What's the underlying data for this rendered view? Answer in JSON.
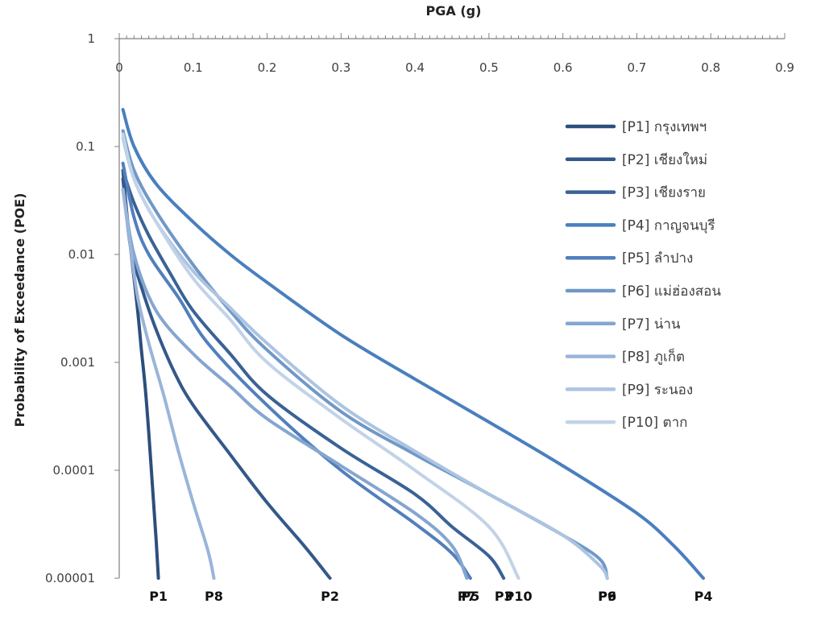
{
  "chart_data": {
    "type": "line",
    "title": "",
    "xlabel": "PGA (g)",
    "ylabel": "Probability of Exceedance (POE)",
    "x_axis_position": "top",
    "xlim": [
      0,
      0.9
    ],
    "ylim": [
      1e-05,
      1
    ],
    "yscale": "log",
    "x_ticks": [
      "0",
      "0.1",
      "0.2",
      "0.3",
      "0.4",
      "0.5",
      "0.6",
      "0.7",
      "0.8",
      "0.9"
    ],
    "y_ticks": [
      "1",
      "0.1",
      "0.01",
      "0.001",
      "0.0001",
      "0.00001"
    ],
    "legend_position": "right",
    "grid": false,
    "series": [
      {
        "name": "[P1] กรุงเทพฯ",
        "end_label": "P1",
        "color": "#2c4f7c",
        "points": [
          [
            0.005,
            0.06
          ],
          [
            0.01,
            0.025
          ],
          [
            0.015,
            0.012
          ],
          [
            0.02,
            0.006
          ],
          [
            0.025,
            0.003
          ],
          [
            0.03,
            0.0013
          ],
          [
            0.035,
            0.0006
          ],
          [
            0.04,
            0.00022
          ],
          [
            0.045,
            7e-05
          ],
          [
            0.05,
            2.2e-05
          ],
          [
            0.053,
            1e-05
          ]
        ]
      },
      {
        "name": "[P2] เชียงใหม่",
        "end_label": "P2",
        "color": "#34588a",
        "points": [
          [
            0.005,
            0.05
          ],
          [
            0.015,
            0.012
          ],
          [
            0.03,
            0.005
          ],
          [
            0.05,
            0.002
          ],
          [
            0.075,
            0.0008
          ],
          [
            0.1,
            0.0004
          ],
          [
            0.15,
            0.00014
          ],
          [
            0.2,
            5e-05
          ],
          [
            0.25,
            2e-05
          ],
          [
            0.285,
            1e-05
          ]
        ]
      },
      {
        "name": "[P3] เชียงราย",
        "end_label": "P3",
        "color": "#3a6296",
        "points": [
          [
            0.005,
            0.06
          ],
          [
            0.02,
            0.03
          ],
          [
            0.04,
            0.015
          ],
          [
            0.07,
            0.0065
          ],
          [
            0.1,
            0.003
          ],
          [
            0.15,
            0.0012
          ],
          [
            0.2,
            0.0005
          ],
          [
            0.3,
            0.00016
          ],
          [
            0.4,
            6e-05
          ],
          [
            0.45,
            3e-05
          ],
          [
            0.5,
            1.6e-05
          ],
          [
            0.52,
            1e-05
          ]
        ]
      },
      {
        "name": "[P4] กาญจนบุรี",
        "end_label": "P4",
        "color": "#4a7fbe",
        "points": [
          [
            0.005,
            0.22
          ],
          [
            0.02,
            0.1
          ],
          [
            0.05,
            0.045
          ],
          [
            0.1,
            0.02
          ],
          [
            0.15,
            0.01
          ],
          [
            0.2,
            0.0055
          ],
          [
            0.3,
            0.0018
          ],
          [
            0.4,
            0.0007
          ],
          [
            0.5,
            0.00028
          ],
          [
            0.6,
            0.00011
          ],
          [
            0.7,
            4e-05
          ],
          [
            0.75,
            2e-05
          ],
          [
            0.79,
            1e-05
          ]
        ]
      },
      {
        "name": "[P5] ลำปาง",
        "end_label": "P5",
        "color": "#527fbd",
        "points": [
          [
            0.005,
            0.07
          ],
          [
            0.02,
            0.022
          ],
          [
            0.04,
            0.01
          ],
          [
            0.08,
            0.004
          ],
          [
            0.12,
            0.0015
          ],
          [
            0.2,
            0.0004
          ],
          [
            0.3,
            0.0001
          ],
          [
            0.4,
            3.2e-05
          ],
          [
            0.45,
            1.7e-05
          ],
          [
            0.475,
            1e-05
          ]
        ]
      },
      {
        "name": "[P6] แม่ฮ่องสอน",
        "end_label": "P6",
        "color": "#7098c8",
        "points": [
          [
            0.005,
            0.14
          ],
          [
            0.02,
            0.06
          ],
          [
            0.05,
            0.025
          ],
          [
            0.1,
            0.008
          ],
          [
            0.15,
            0.003
          ],
          [
            0.2,
            0.0013
          ],
          [
            0.3,
            0.00035
          ],
          [
            0.4,
            0.00014
          ],
          [
            0.5,
            6e-05
          ],
          [
            0.6,
            2.5e-05
          ],
          [
            0.65,
            1.5e-05
          ],
          [
            0.66,
            1e-05
          ]
        ]
      },
      {
        "name": "[P7] น่าน",
        "end_label": "P7",
        "color": "#84a6d0",
        "points": [
          [
            0.005,
            0.04
          ],
          [
            0.02,
            0.01
          ],
          [
            0.05,
            0.003
          ],
          [
            0.1,
            0.0012
          ],
          [
            0.15,
            0.0006
          ],
          [
            0.2,
            0.0003
          ],
          [
            0.3,
            0.00011
          ],
          [
            0.4,
            4e-05
          ],
          [
            0.45,
            2e-05
          ],
          [
            0.47,
            1e-05
          ]
        ]
      },
      {
        "name": "[P8] ภูเก็ต",
        "end_label": "P8",
        "color": "#9ab5d9",
        "points": [
          [
            0.005,
            0.04
          ],
          [
            0.015,
            0.012
          ],
          [
            0.025,
            0.004
          ],
          [
            0.04,
            0.0015
          ],
          [
            0.06,
            0.0005
          ],
          [
            0.08,
            0.00015
          ],
          [
            0.1,
            5e-05
          ],
          [
            0.12,
            1.8e-05
          ],
          [
            0.128,
            1e-05
          ]
        ]
      },
      {
        "name": "[P9] ระนอง",
        "end_label": "P9",
        "color": "#acc4e0",
        "points": [
          [
            0.005,
            0.12
          ],
          [
            0.02,
            0.05
          ],
          [
            0.05,
            0.02
          ],
          [
            0.1,
            0.007
          ],
          [
            0.15,
            0.0032
          ],
          [
            0.2,
            0.0015
          ],
          [
            0.3,
            0.0004
          ],
          [
            0.4,
            0.00015
          ],
          [
            0.5,
            6e-05
          ],
          [
            0.6,
            2.5e-05
          ],
          [
            0.65,
            1.3e-05
          ],
          [
            0.66,
            1e-05
          ]
        ]
      },
      {
        "name": "[P10] ตาก",
        "end_label": "P10",
        "color": "#c2d3e8",
        "points": [
          [
            0.005,
            0.13
          ],
          [
            0.02,
            0.05
          ],
          [
            0.05,
            0.02
          ],
          [
            0.1,
            0.006
          ],
          [
            0.15,
            0.0025
          ],
          [
            0.2,
            0.001
          ],
          [
            0.3,
            0.0003
          ],
          [
            0.4,
            0.0001
          ],
          [
            0.5,
            3e-05
          ],
          [
            0.54,
            1e-05
          ]
        ]
      }
    ]
  }
}
